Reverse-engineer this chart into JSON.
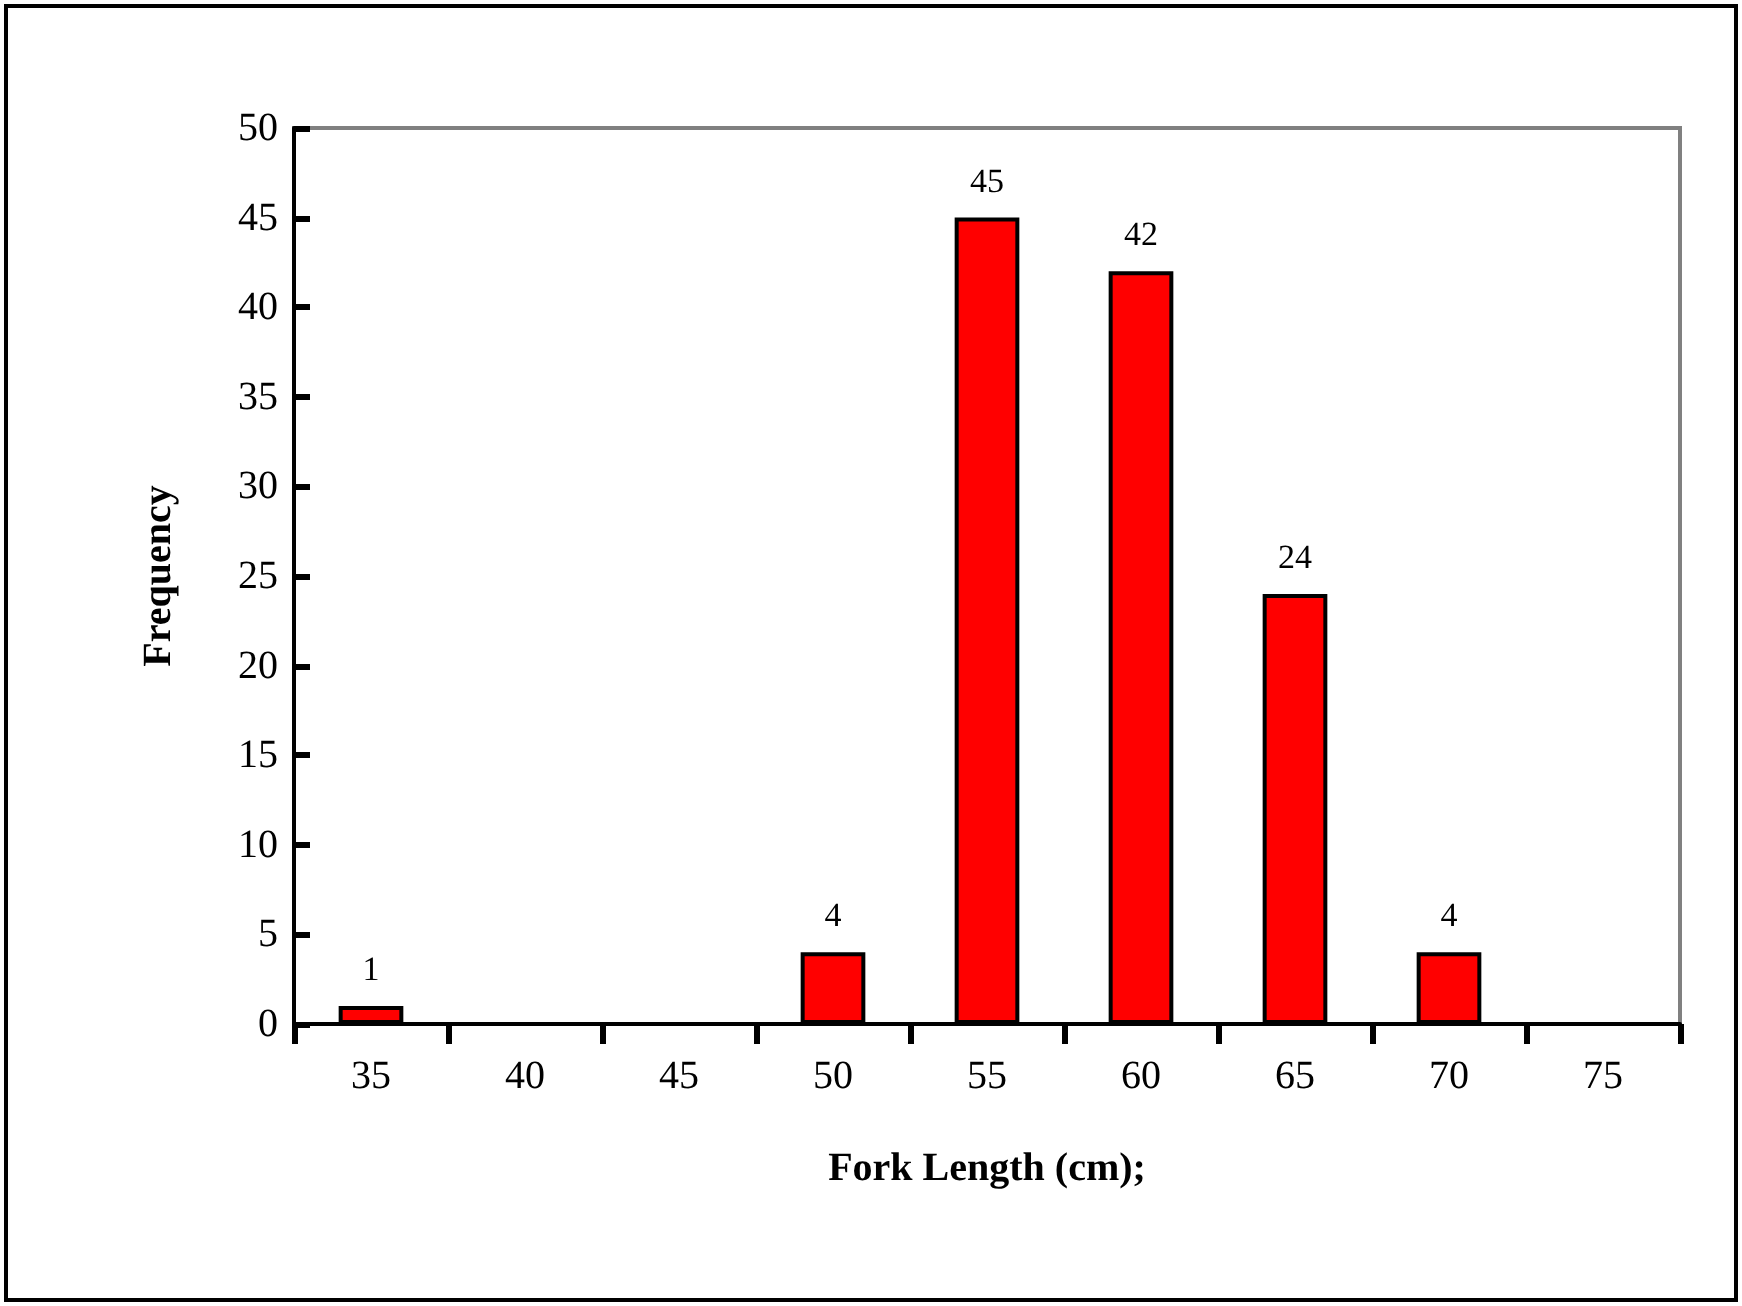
{
  "chart_data": {
    "type": "bar",
    "xlabel": "Fork Length (cm);",
    "ylabel": "Frequency",
    "categories": [
      "35",
      "40",
      "45",
      "50",
      "55",
      "60",
      "65",
      "70",
      "75"
    ],
    "values": [
      1,
      0,
      0,
      4,
      45,
      42,
      24,
      4,
      0
    ],
    "value_labels": [
      "1",
      null,
      null,
      "4",
      "45",
      "42",
      "24",
      "4",
      null
    ],
    "color": "#ff0000",
    "ylim": [
      0,
      50
    ],
    "yticks": [
      0,
      5,
      10,
      15,
      20,
      25,
      30,
      35,
      40,
      45,
      50
    ],
    "grid": false
  }
}
